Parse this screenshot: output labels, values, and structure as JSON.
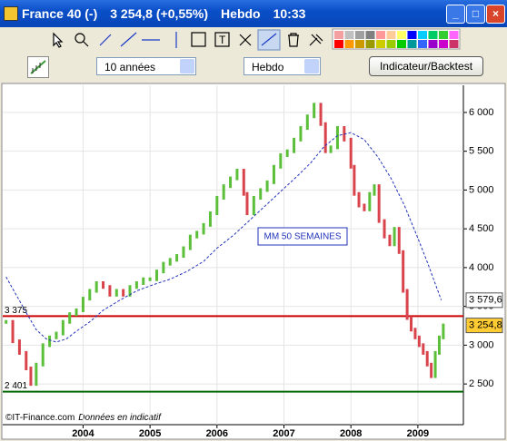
{
  "window": {
    "title": "France 40 (-)",
    "quote": "3 254,8 (+0,55%)",
    "period": "Hebdo",
    "time": "10:33"
  },
  "controls": {
    "range": "10 années",
    "period": "Hebdo",
    "button": "Indicateur/Backtest"
  },
  "footer": {
    "source": "©IT-Finance.com",
    "note": "Données en indicatif"
  },
  "chart_data": {
    "type": "candles",
    "annotation": "MM 50 SEMAINES",
    "xlim": [
      2002.8,
      2009.68
    ],
    "xticks": [
      2004,
      2005,
      2006,
      2007,
      2008,
      2009
    ],
    "ylim": [
      1975,
      6350
    ],
    "yticks": [
      {
        "value": 2500,
        "label": "2 500"
      },
      {
        "value": 3000,
        "label": "3 000"
      },
      {
        "value": 3500,
        "label": "3 500"
      },
      {
        "value": 4000,
        "label": "4 000"
      },
      {
        "value": 4500,
        "label": "4 500"
      },
      {
        "value": 5000,
        "label": "5 000"
      },
      {
        "value": 5500,
        "label": "5 500"
      },
      {
        "value": 6000,
        "label": "6 000"
      }
    ],
    "grid": true,
    "price": {
      "up_color": "#5cbf3a",
      "down_color": "#d9434b",
      "x": [
        2002.85,
        2002.95,
        2003.05,
        2003.15,
        2003.22,
        2003.3,
        2003.4,
        2003.5,
        2003.6,
        2003.7,
        2003.8,
        2003.9,
        2004.0,
        2004.1,
        2004.2,
        2004.3,
        2004.4,
        2004.5,
        2004.6,
        2004.7,
        2004.8,
        2004.9,
        2005.0,
        2005.1,
        2005.2,
        2005.3,
        2005.4,
        2005.5,
        2005.6,
        2005.7,
        2005.8,
        2005.9,
        2006.0,
        2006.1,
        2006.2,
        2006.3,
        2006.4,
        2006.45,
        2006.55,
        2006.65,
        2006.75,
        2006.85,
        2006.95,
        2007.05,
        2007.15,
        2007.25,
        2007.35,
        2007.45,
        2007.55,
        2007.62,
        2007.7,
        2007.8,
        2007.9,
        2008.0,
        2008.05,
        2008.12,
        2008.2,
        2008.28,
        2008.35,
        2008.42,
        2008.5,
        2008.58,
        2008.65,
        2008.72,
        2008.78,
        2008.84,
        2008.9,
        2008.96,
        2009.02,
        2009.08,
        2009.14,
        2009.2,
        2009.26,
        2009.32,
        2009.38
      ],
      "values": [
        3300,
        3050,
        2900,
        2700,
        2500,
        2750,
        3000,
        3100,
        3150,
        3300,
        3400,
        3450,
        3600,
        3700,
        3800,
        3750,
        3650,
        3700,
        3650,
        3750,
        3800,
        3850,
        3850,
        3950,
        4050,
        4100,
        4150,
        4250,
        4400,
        4450,
        4550,
        4700,
        4900,
        5050,
        5150,
        5250,
        4950,
        4700,
        4900,
        5000,
        5100,
        5300,
        5450,
        5500,
        5650,
        5800,
        5950,
        6100,
        5850,
        5500,
        5550,
        5800,
        5650,
        5300,
        4950,
        4800,
        4750,
        4950,
        5050,
        4600,
        4400,
        4300,
        4500,
        4200,
        3700,
        3350,
        3200,
        3100,
        3000,
        2900,
        2750,
        2600,
        2900,
        3100,
        3254.8
      ]
    },
    "moving_average": {
      "color": "#2233bb",
      "x": [
        2002.85,
        2003.0,
        2003.15,
        2003.3,
        2003.45,
        2003.6,
        2003.75,
        2003.9,
        2004.1,
        2004.3,
        2004.55,
        2004.8,
        2005.05,
        2005.3,
        2005.55,
        2005.8,
        2006.0,
        2006.25,
        2006.5,
        2006.75,
        2007.0,
        2007.2,
        2007.4,
        2007.6,
        2007.8,
        2008.0,
        2008.2,
        2008.4,
        2008.6,
        2008.8,
        2009.0,
        2009.15,
        2009.35
      ],
      "values": [
        3880,
        3650,
        3420,
        3200,
        3080,
        3040,
        3080,
        3180,
        3300,
        3450,
        3580,
        3700,
        3780,
        3850,
        3950,
        4080,
        4250,
        4420,
        4620,
        4820,
        5020,
        5180,
        5350,
        5560,
        5700,
        5740,
        5650,
        5430,
        5150,
        4800,
        4380,
        4050,
        3579.6
      ]
    },
    "levels": [
      {
        "value": 3375,
        "label": "3 375",
        "color": "#cc0000"
      },
      {
        "value": 2401,
        "label": "2 401",
        "color": "#006600"
      }
    ],
    "last_labels": [
      {
        "value": 3579.6,
        "label": "3 579,6",
        "color": "#ffffff"
      },
      {
        "value": 3254.8,
        "label": "3 254,8",
        "color": "#ffcc33"
      }
    ]
  }
}
